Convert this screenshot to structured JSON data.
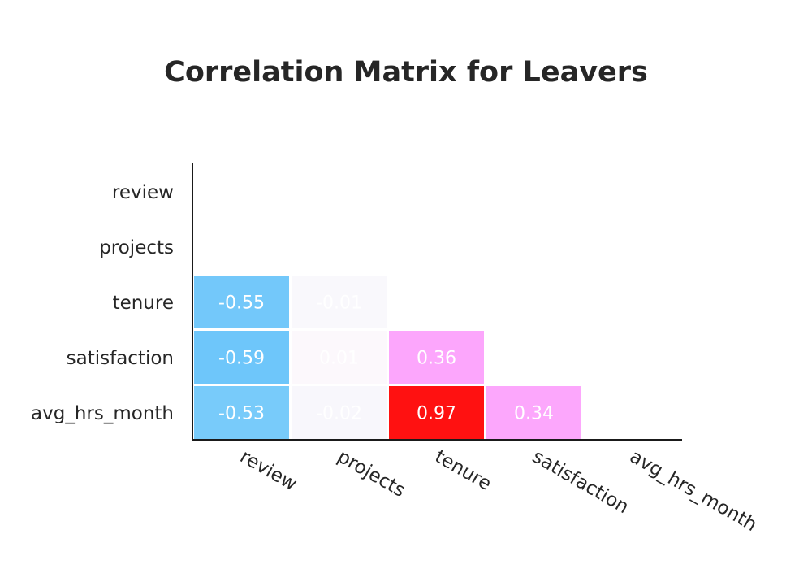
{
  "chart_data": {
    "type": "heatmap",
    "title": "Correlation Matrix for Leavers",
    "xlabel": "",
    "ylabel": "",
    "x_categories": [
      "review",
      "projects",
      "tenure",
      "satisfaction",
      "avg_hrs_month"
    ],
    "y_categories": [
      "review",
      "projects",
      "tenure",
      "satisfaction",
      "avg_hrs_month"
    ],
    "mask": "upper-triangle-and-diagonal",
    "cells": [
      {
        "row": "tenure",
        "col": "review",
        "value": -0.55,
        "label": "-0.55",
        "color": "#73c8fa"
      },
      {
        "row": "tenure",
        "col": "projects",
        "value": -0.01,
        "label": "-0.01",
        "color": "#f9f8fc"
      },
      {
        "row": "satisfaction",
        "col": "review",
        "value": -0.59,
        "label": "-0.59",
        "color": "#6ec6fa"
      },
      {
        "row": "satisfaction",
        "col": "projects",
        "value": 0.01,
        "label": "0.01",
        "color": "#fcf8fc"
      },
      {
        "row": "satisfaction",
        "col": "tenure",
        "value": 0.36,
        "label": "0.36",
        "color": "#fca6fc"
      },
      {
        "row": "avg_hrs_month",
        "col": "review",
        "value": -0.53,
        "label": "-0.53",
        "color": "#78cbfa"
      },
      {
        "row": "avg_hrs_month",
        "col": "projects",
        "value": -0.02,
        "label": "-0.02",
        "color": "#f8f7fc"
      },
      {
        "row": "avg_hrs_month",
        "col": "tenure",
        "value": 0.97,
        "label": "0.97",
        "color": "#ff1111"
      },
      {
        "row": "avg_hrs_month",
        "col": "satisfaction",
        "value": 0.34,
        "label": "0.34",
        "color": "#fca7fc"
      }
    ],
    "colorscale": {
      "negative": "#3cb4f8",
      "zero": "#f8f8fc",
      "positive_mid": "#fc9cfc",
      "positive_max": "#ff0000"
    },
    "cell_text_color": "#ffffff",
    "legend": "none",
    "grid": false
  }
}
